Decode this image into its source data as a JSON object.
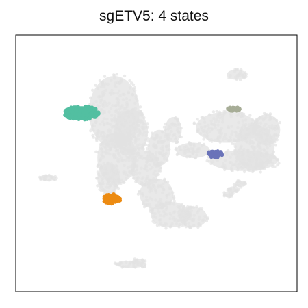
{
  "chart_data": {
    "type": "scatter",
    "title": "sgETV5: 4 states",
    "xlabel": "",
    "ylabel": "",
    "axes": "frame only, no ticks",
    "grid": false,
    "legend": "none",
    "xlim": [
      0,
      100
    ],
    "ylim": [
      0,
      100
    ],
    "background_color": "#e2e2e2",
    "background_clusters": [
      {
        "id": "main-body",
        "ellipses": [
          {
            "cx": 35,
            "cy": 70,
            "rx": 9,
            "ry": 14
          },
          {
            "cx": 36,
            "cy": 52,
            "rx": 7,
            "ry": 10
          },
          {
            "cx": 41,
            "cy": 62,
            "rx": 6,
            "ry": 9
          },
          {
            "cx": 33,
            "cy": 44,
            "rx": 4,
            "ry": 6
          },
          {
            "cx": 46,
            "cy": 48,
            "rx": 5,
            "ry": 7
          },
          {
            "cx": 50,
            "cy": 38,
            "rx": 6,
            "ry": 6
          },
          {
            "cx": 55,
            "cy": 30,
            "rx": 7,
            "ry": 5
          },
          {
            "cx": 63,
            "cy": 29,
            "rx": 5,
            "ry": 4
          },
          {
            "cx": 51,
            "cy": 56,
            "rx": 4,
            "ry": 7
          },
          {
            "cx": 56,
            "cy": 63,
            "rx": 3,
            "ry": 5
          }
        ]
      },
      {
        "id": "right-body",
        "ellipses": [
          {
            "cx": 75,
            "cy": 64,
            "rx": 11,
            "ry": 6
          },
          {
            "cx": 85,
            "cy": 56,
            "rx": 7,
            "ry": 9
          },
          {
            "cx": 81,
            "cy": 51,
            "rx": 12,
            "ry": 4
          },
          {
            "cx": 63,
            "cy": 55,
            "rx": 6,
            "ry": 3
          },
          {
            "cx": 89,
            "cy": 63,
            "rx": 5,
            "ry": 6
          }
        ]
      },
      {
        "id": "top-ring",
        "ellipses": [
          {
            "cx": 78.5,
            "cy": 84.5,
            "rx": 3.5,
            "ry": 2
          }
        ]
      },
      {
        "id": "right-strand",
        "ellipses": [
          {
            "cx": 80,
            "cy": 42,
            "rx": 2.2,
            "ry": 1.2
          },
          {
            "cx": 77.5,
            "cy": 39.8,
            "rx": 2.2,
            "ry": 1.2
          },
          {
            "cx": 75.5,
            "cy": 37.8,
            "rx": 1.8,
            "ry": 1.1
          }
        ]
      },
      {
        "id": "left-isle",
        "ellipses": [
          {
            "cx": 11.3,
            "cy": 44.3,
            "rx": 3,
            "ry": 1.2
          }
        ]
      },
      {
        "id": "bottom-isle",
        "ellipses": [
          {
            "cx": 41,
            "cy": 10.6,
            "rx": 5.5,
            "ry": 1.3
          },
          {
            "cx": 43.7,
            "cy": 11.8,
            "rx": 2.2,
            "ry": 1.0
          }
        ]
      }
    ],
    "series": [
      {
        "color": "#52bfa1",
        "center": [
          23.3,
          69.6
        ],
        "radius": [
          6.2,
          2.6
        ]
      },
      {
        "color": "#6a73b9",
        "center": [
          70.8,
          53.6
        ],
        "radius": [
          2.8,
          1.3
        ]
      },
      {
        "color": "#a7ad97",
        "center": [
          77.6,
          71.1
        ],
        "radius": [
          2.2,
          0.7
        ]
      },
      {
        "color": "#ec8b12",
        "center": [
          34.0,
          36.2
        ],
        "radius": [
          3.2,
          1.9
        ]
      }
    ]
  }
}
